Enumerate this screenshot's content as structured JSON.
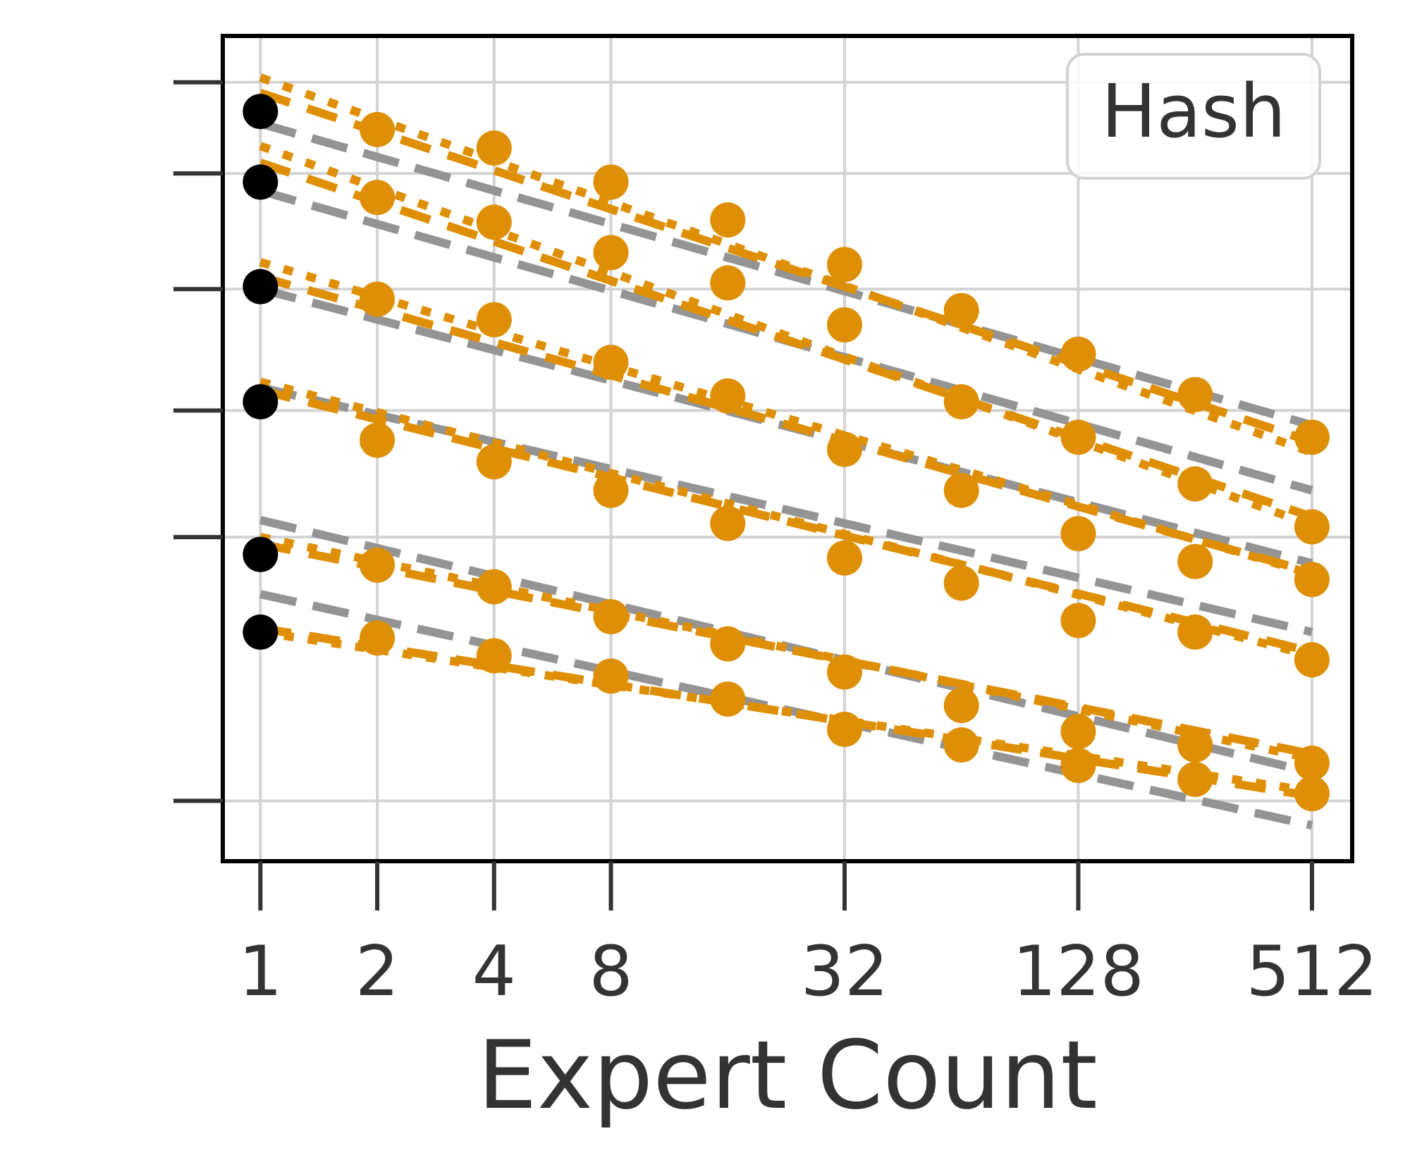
{
  "chart_data": {
    "type": "line",
    "xlabel": "Expert Count",
    "ylabel": "",
    "x_scale": "log2",
    "xlim": [
      0.8,
      650
    ],
    "x_ticks": [
      1,
      2,
      4,
      8,
      32,
      128,
      512
    ],
    "x_tick_labels": [
      "1",
      "2",
      "4",
      "8",
      "32",
      "128",
      "512"
    ],
    "y_scale": "log",
    "ylim": [
      2.96,
      8.6
    ],
    "y_ticks": [
      3.2,
      4.5,
      5.3,
      6.2,
      7.2,
      8.1
    ],
    "y_tick_labels": [
      "",
      "",
      "",
      "",
      "",
      ""
    ],
    "grid": true,
    "legend": {
      "entries": [
        "Hash"
      ],
      "placement": "top-right"
    },
    "colors": {
      "dense": "#000000",
      "moe": "#de8f05",
      "fit": "#949494",
      "grid": "#d3d3d3",
      "frame": "#000000"
    },
    "x": [
      1,
      2,
      4,
      8,
      16,
      32,
      64,
      128,
      256,
      512
    ],
    "series": [
      {
        "values": [
          7.8,
          7.62,
          7.44,
          7.12,
          6.78,
          6.4,
          6.03,
          5.7,
          5.41,
          5.12
        ],
        "fit_moe_dotted": [
          8.15,
          5.02
        ],
        "fit_moe_dashed": [
          7.99,
          5.09
        ],
        "fit_gray": [
          7.68,
          5.2
        ]
      },
      {
        "values": [
          7.12,
          6.98,
          6.76,
          6.5,
          6.25,
          5.92,
          5.36,
          5.12,
          4.82,
          4.56
        ],
        "fit_moe_dotted": [
          7.46,
          4.57
        ],
        "fit_moe_dashed": [
          7.3,
          4.62
        ],
        "fit_gray": [
          7.04,
          4.78
        ]
      },
      {
        "values": [
          6.22,
          6.12,
          5.96,
          5.64,
          5.4,
          5.04,
          4.78,
          4.52,
          4.36,
          4.26
        ],
        "fit_moe_dotted": [
          6.42,
          4.29
        ],
        "fit_moe_dashed": [
          6.3,
          4.3
        ],
        "fit_gray": [
          6.2,
          4.35
        ]
      },
      {
        "values": [
          5.36,
          5.1,
          4.96,
          4.78,
          4.58,
          4.38,
          4.24,
          4.04,
          3.98,
          3.84
        ],
        "fit_moe_dotted": [
          5.5,
          3.86
        ],
        "fit_moe_dashed": [
          5.44,
          3.88
        ],
        "fit_gray": [
          5.46,
          3.98
        ]
      },
      {
        "values": [
          4.4,
          4.34,
          4.22,
          4.06,
          3.92,
          3.78,
          3.62,
          3.5,
          3.44,
          3.36
        ],
        "fit_moe_dotted": [
          4.5,
          3.38
        ],
        "fit_moe_dashed": [
          4.46,
          3.4
        ],
        "fit_gray": [
          4.6,
          3.32
        ]
      },
      {
        "values": [
          3.98,
          3.95,
          3.86,
          3.76,
          3.65,
          3.51,
          3.44,
          3.35,
          3.29,
          3.23
        ],
        "fit_moe_dotted": [
          3.98,
          3.24
        ],
        "fit_moe_dashed": [
          4.0,
          3.22
        ],
        "fit_gray": [
          4.18,
          3.1
        ]
      }
    ]
  }
}
